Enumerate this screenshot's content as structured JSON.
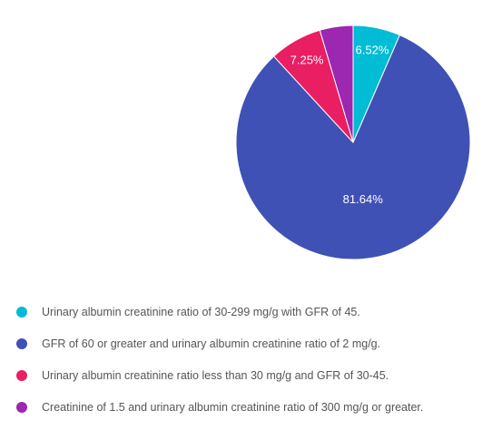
{
  "chart_data": {
    "type": "pie",
    "title": "",
    "start_angle_deg": 0,
    "direction": "clockwise",
    "slices": [
      {
        "label": "Urinary albumin creatinine ratio of 30-299 mg/g with GFR of 45.",
        "value": 6.52,
        "display": "6.52%",
        "color": "#00bcd4",
        "show_label": true
      },
      {
        "label": "GFR of 60 or greater and urinary albumin creatinine ratio of 2 mg/g.",
        "value": 81.64,
        "display": "81.64%",
        "color": "#3f51b5",
        "show_label": true
      },
      {
        "label": "Urinary albumin creatinine ratio less than 30 mg/g and GFR of 30-45.",
        "value": 7.25,
        "display": "7.25%",
        "color": "#e91e63",
        "show_label": true
      },
      {
        "label": "Creatinine of 1.5 and urinary albumin creatinine ratio of 300 mg/g or greater.",
        "value": 4.59,
        "display": "4.59%",
        "color": "#9c27b0",
        "show_label": false
      }
    ],
    "legend_position": "bottom-left"
  }
}
